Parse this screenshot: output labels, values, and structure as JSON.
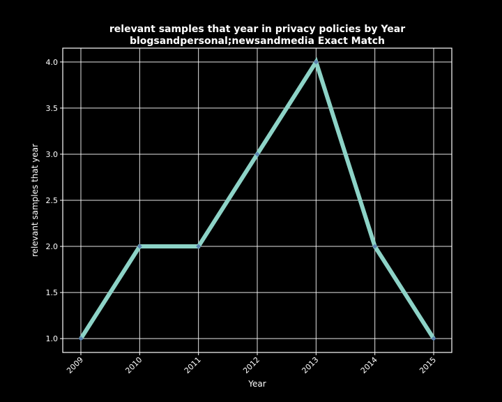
{
  "chart_data": {
    "type": "line",
    "title": [
      "relevant samples that year in privacy policies by Year",
      "blogsandpersonal;newsandmedia Exact Match"
    ],
    "xlabel": "Year",
    "ylabel": "relevant samples that year",
    "x": [
      "2009",
      "2010",
      "2011",
      "2012",
      "2013",
      "2014",
      "2015"
    ],
    "series": [
      {
        "values": [
          1,
          2,
          2,
          3,
          4,
          2,
          1
        ]
      }
    ],
    "yticks": [
      "1.0",
      "1.5",
      "2.0",
      "2.5",
      "3.0",
      "3.5",
      "4.0"
    ],
    "ylim": [
      0.85,
      4.15
    ],
    "grid": true,
    "legend": "none"
  },
  "colors": {
    "background": "#000000",
    "line": "#8dd3c7",
    "marker": "#5b84b1",
    "text": "#ffffff"
  }
}
